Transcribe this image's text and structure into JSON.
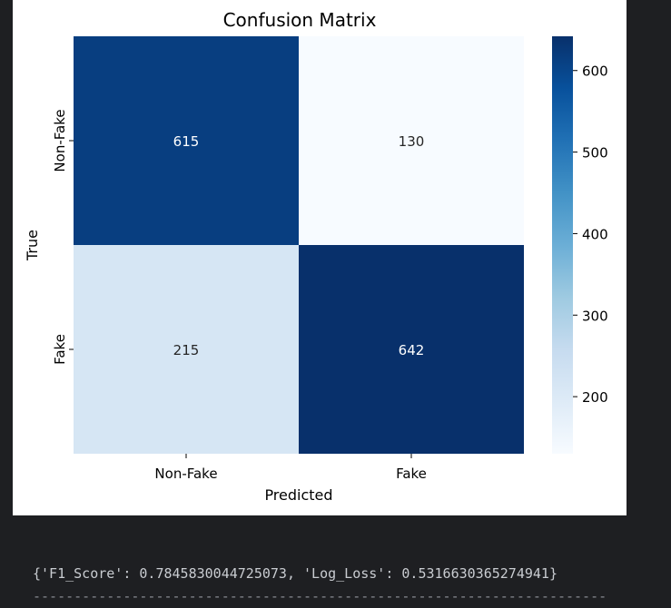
{
  "chart_data": {
    "type": "heatmap",
    "title": "Confusion Matrix",
    "xlabel": "Predicted",
    "ylabel": "True",
    "x_categories": [
      "Non-Fake",
      "Fake"
    ],
    "y_categories": [
      "Non-Fake",
      "Fake"
    ],
    "values": [
      [
        615,
        130
      ],
      [
        215,
        642
      ]
    ],
    "colormap": "Blues",
    "colorbar": {
      "ticks": [
        200,
        300,
        400,
        500,
        600
      ],
      "range": [
        130,
        642
      ]
    }
  },
  "output": {
    "text": "{'F1_Score': 0.7845830044725073, 'Log_Loss': 0.5316630365274941}",
    "separator": "-------------------------------------------------------------------------"
  }
}
